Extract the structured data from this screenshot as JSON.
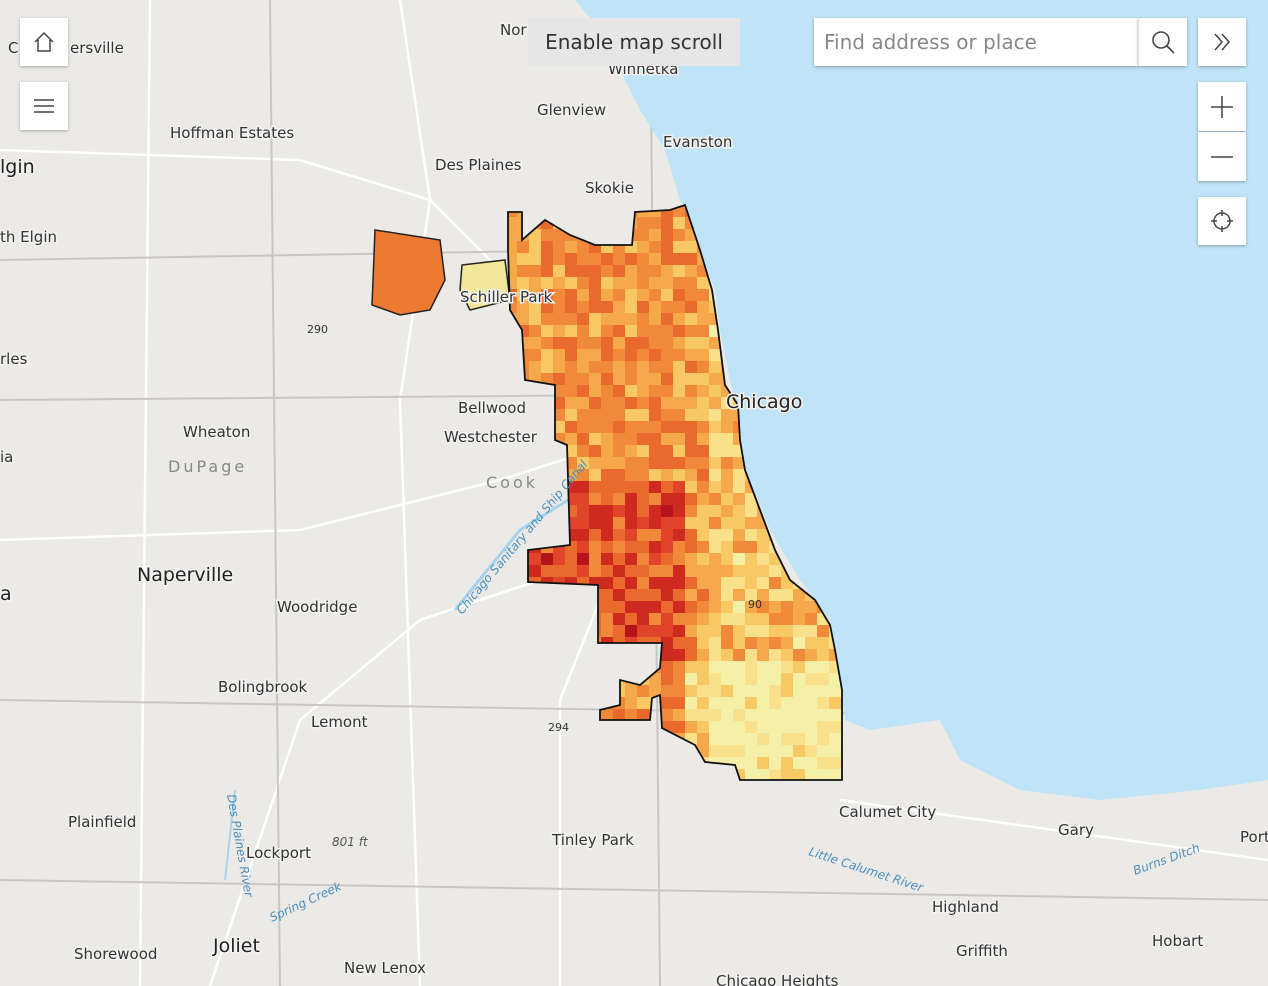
{
  "ui": {
    "scroll_button": "Enable map scroll",
    "search_placeholder": "Find address or place"
  },
  "map": {
    "labels": [
      "Nor",
      "C",
      "ersville",
      "Winnetka",
      "Glenview",
      "Evanston",
      "Hoffman Estates",
      "Des Plaines",
      "Skokie",
      "lgin",
      "th Elgin",
      "Schiller Park",
      "290",
      "Chicago",
      "Bellwood",
      "Westchester",
      "rles",
      "Wheaton",
      "DuPage",
      "ia",
      "Cook",
      "Chicago Sanitary and Ship Canal",
      "Naperville",
      "a",
      "Woodridge",
      "90",
      "Bolingbrook",
      "Lemont",
      "294",
      "Calumet City",
      "Plainfield",
      "Lockport",
      "801 ft",
      "Tinley Park",
      "Little Calumet River",
      "Gary",
      "Burns Ditch",
      "Port",
      "Des Plaines River",
      "Spring Creek",
      "Highland",
      "Griffith",
      "Hobart",
      "Shorewood",
      "Joliet",
      "New Lenox",
      "Chicago Heights"
    ]
  }
}
